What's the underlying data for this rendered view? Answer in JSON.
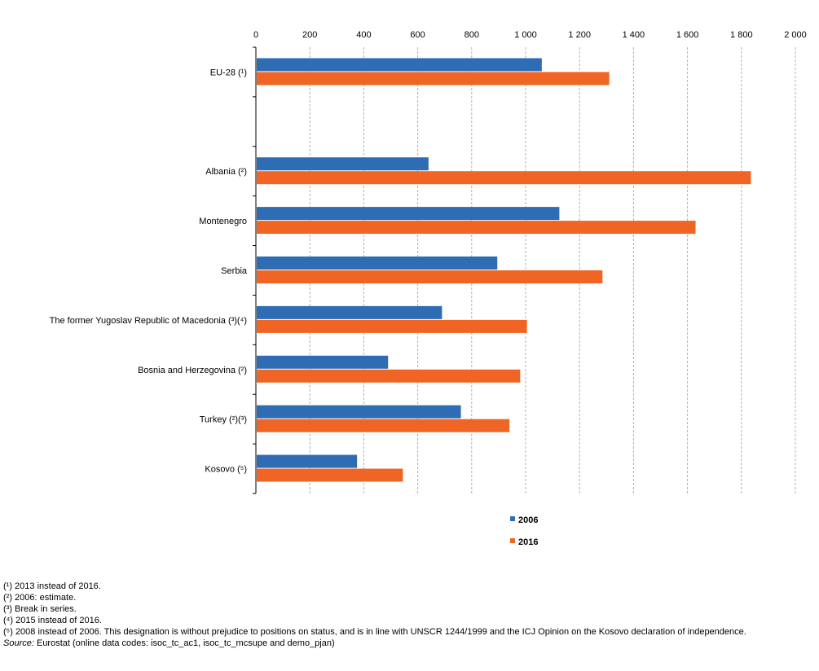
{
  "chart_data": {
    "type": "bar",
    "orientation": "horizontal",
    "categories": [
      "EU-28 (¹)",
      "",
      "Albania (²)",
      "Montenegro",
      "Serbia",
      "The former Yugoslav Republic of Macedonia (³)(⁴)",
      "Bosnia and Herzegovina (²)",
      "Turkey (²)(³)",
      "Kosovo (⁵)"
    ],
    "series": [
      {
        "name": "2006",
        "color": "#2e6db4",
        "values": [
          1060,
          null,
          640,
          1125,
          895,
          690,
          490,
          760,
          375
        ]
      },
      {
        "name": "2016",
        "color": "#f06424",
        "values": [
          1310,
          null,
          1835,
          1630,
          1285,
          1005,
          980,
          940,
          545
        ]
      }
    ],
    "x_ticks": [
      "0",
      "200",
      "400",
      "600",
      "800",
      "1 000",
      "1 200",
      "1 400",
      "1 600",
      "1 800",
      "2 000"
    ],
    "xlim": [
      0,
      2000
    ],
    "tick_step": 200,
    "axis_position": "top",
    "grid": "vertical dashed",
    "legend_position": "bottom"
  },
  "footnotes": [
    "(¹) 2013 instead of 2016.",
    "(²) 2006: estimate.",
    "(³) Break in series.",
    "(⁴) 2015 instead of 2016.",
    "(⁵) 2008 instead of 2006. This designation is without prejudice to positions on status, and is in line with UNSCR 1244/1999 and the ICJ Opinion on the Kosovo declaration of independence."
  ],
  "source": {
    "label": "Source:",
    "text": " Eurostat (online data codes: isoc_tc_ac1, isoc_tc_mcsupe and demo_pjan)"
  }
}
